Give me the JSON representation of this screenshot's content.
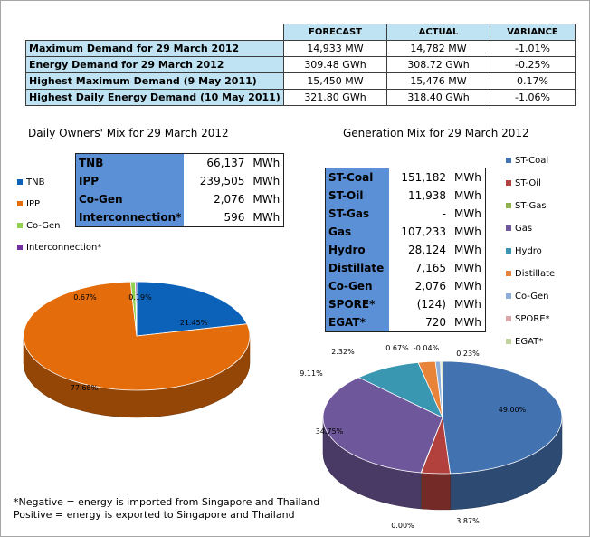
{
  "demand_table": {
    "headers": [
      "FORECAST",
      "ACTUAL",
      "VARIANCE"
    ],
    "rows": [
      {
        "label": "Maximum Demand for 29 March 2012",
        "forecast": "14,933  MW",
        "actual": "14,782  MW",
        "variance": "-1.01%"
      },
      {
        "label": "Energy Demand for 29 March 2012",
        "forecast": "309.48  GWh",
        "actual": "308.72  GWh",
        "variance": "-0.25%"
      },
      {
        "label": "Highest Maximum Demand (9 May 2011)",
        "forecast": "15,450  MW",
        "actual": "15,476  MW",
        "variance": "0.17%"
      },
      {
        "label": "Highest Daily Energy Demand (10 May 2011)",
        "forecast": "321.80  GWh",
        "actual": "318.40  GWh",
        "variance": "-1.06%"
      }
    ]
  },
  "owners_mix": {
    "title": "Daily Owners' Mix for 29 March 2012",
    "rows": [
      {
        "label": "TNB",
        "value": "66,137",
        "unit": "MWh"
      },
      {
        "label": "IPP",
        "value": "239,505",
        "unit": "MWh"
      },
      {
        "label": "Co-Gen",
        "value": "2,076",
        "unit": "MWh"
      },
      {
        "label": "Interconnection*",
        "value": "596",
        "unit": "MWh"
      }
    ],
    "legend": [
      {
        "label": "TNB",
        "color": "#0b62b8"
      },
      {
        "label": "IPP",
        "color": "#e46c0a"
      },
      {
        "label": "Co-Gen",
        "color": "#92d050"
      },
      {
        "label": "Interconnection*",
        "color": "#7030a0"
      }
    ]
  },
  "generation_mix": {
    "title": "Generation Mix for 29 March 2012",
    "rows": [
      {
        "label": "ST-Coal",
        "value": "151,182",
        "unit": "MWh"
      },
      {
        "label": "ST-Oil",
        "value": "11,938",
        "unit": "MWh"
      },
      {
        "label": "ST-Gas",
        "value": "-",
        "unit": "MWh"
      },
      {
        "label": "Gas",
        "value": "107,233",
        "unit": "MWh"
      },
      {
        "label": "Hydro",
        "value": "28,124",
        "unit": "MWh"
      },
      {
        "label": "Distillate",
        "value": "7,165",
        "unit": "MWh"
      },
      {
        "label": "Co-Gen",
        "value": "2,076",
        "unit": "MWh"
      },
      {
        "label": "SPORE*",
        "value": "(124)",
        "unit": "MWh"
      },
      {
        "label": "EGAT*",
        "value": "720",
        "unit": "MWh"
      }
    ],
    "legend": [
      {
        "label": "ST-Coal",
        "color": "#4372b0"
      },
      {
        "label": "ST-Oil",
        "color": "#b2403c"
      },
      {
        "label": "ST-Gas",
        "color": "#8eb249"
      },
      {
        "label": "Gas",
        "color": "#6f579b"
      },
      {
        "label": "Hydro",
        "color": "#3a97b2"
      },
      {
        "label": "Distillate",
        "color": "#e8833a"
      },
      {
        "label": "Co-Gen",
        "color": "#8daed8"
      },
      {
        "label": "SPORE*",
        "color": "#d9a7a5"
      },
      {
        "label": "EGAT*",
        "color": "#c1d49a"
      }
    ]
  },
  "chart_data": [
    {
      "type": "pie",
      "title": "Daily Owners' Mix for 29 March 2012",
      "categories": [
        "TNB",
        "IPP",
        "Co-Gen",
        "Interconnection*"
      ],
      "values": [
        21.45,
        77.68,
        0.67,
        0.19
      ],
      "labels": [
        "21.45%",
        "77.68%",
        "0.67%",
        "0.19%"
      ],
      "colors": [
        "#0b62b8",
        "#e46c0a",
        "#92d050",
        "#7030a0"
      ],
      "legend_position": "left"
    },
    {
      "type": "pie",
      "title": "Generation Mix for 29 March 2012",
      "categories": [
        "ST-Coal",
        "ST-Oil",
        "ST-Gas",
        "Gas",
        "Hydro",
        "Distillate",
        "Co-Gen",
        "SPORE*",
        "EGAT*"
      ],
      "values": [
        49.0,
        3.87,
        0.0,
        34.75,
        9.11,
        2.32,
        0.67,
        -0.04,
        0.23
      ],
      "labels": [
        "49.00%",
        "3.87%",
        "0.00%",
        "34.75%",
        "9.11%",
        "2.32%",
        "0.67%",
        "-0.04%",
        "0.23%"
      ],
      "colors": [
        "#4372b0",
        "#b2403c",
        "#8eb249",
        "#6f579b",
        "#3a97b2",
        "#e8833a",
        "#8daed8",
        "#d9a7a5",
        "#c1d49a"
      ],
      "legend_position": "right"
    }
  ],
  "footnote": {
    "line1": "*Negative = energy is imported from Singapore and Thailand",
    "line2": " Positive = energy is exported to Singapore and Thailand"
  }
}
